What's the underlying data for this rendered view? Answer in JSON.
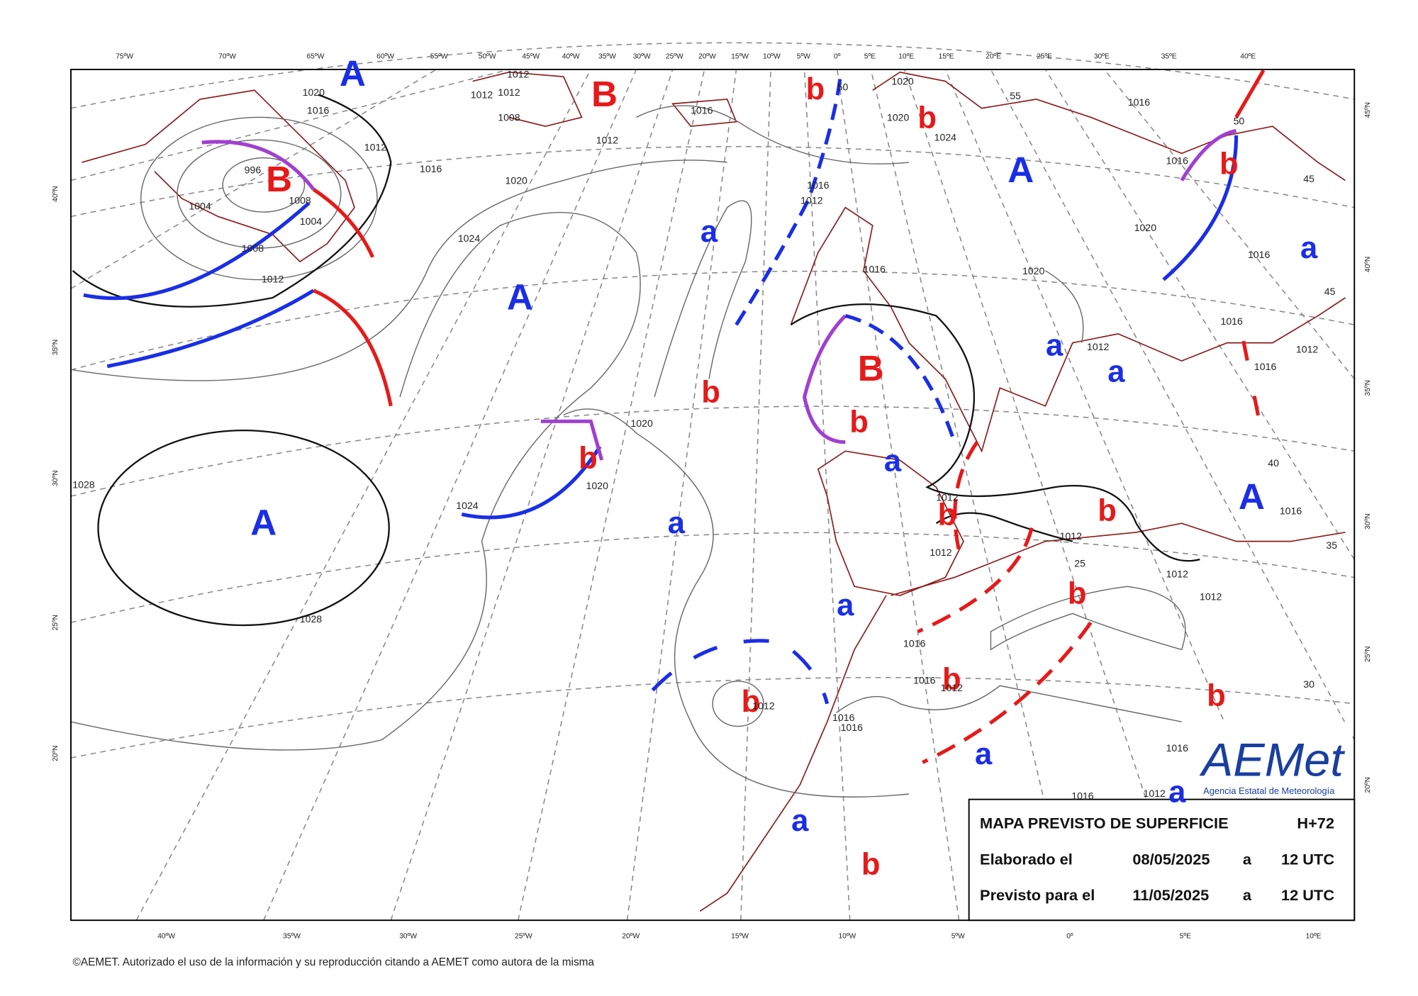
{
  "top_lon_labels": [
    "75ºW",
    "70ºW",
    "65ºW",
    "60ºW",
    "55ºW",
    "50ºW",
    "45ºW",
    "40ºW",
    "35ºW",
    "30ºW",
    "25ºW",
    "20ºW",
    "15ºW",
    "10ºW",
    "5ºW",
    "0º",
    "5ºE",
    "10ºE",
    "15ºE",
    "20ºE",
    "25ºE",
    "30ºE",
    "35ºE",
    "40ºE"
  ],
  "bottom_lon_labels": [
    "40ºW",
    "35ºW",
    "30ºW",
    "25ºW",
    "20ºW",
    "15ºW",
    "10ºW",
    "5ºW",
    "0º",
    "5ºE",
    "10ºE"
  ],
  "left_lat_labels": [
    "40ºN",
    "35ºN",
    "30ºN",
    "25ºN",
    "20ºN"
  ],
  "right_lat_labels": [
    "45ºN",
    "40ºN",
    "35ºN",
    "30ºN",
    "25ºN",
    "20ºN"
  ],
  "pressure_centers": [
    "A",
    "B",
    "b",
    "b",
    "B",
    "A",
    "b",
    "a",
    "a",
    "A",
    "a",
    "a",
    "b",
    "B",
    "b",
    "b",
    "a",
    "A",
    "b",
    "b",
    "A",
    "a",
    "b",
    "a",
    "b",
    "b",
    "b",
    "a",
    "a",
    "a",
    "b"
  ],
  "isobar_labels": [
    "1020",
    "1016",
    "1012",
    "996",
    "1008",
    "1004",
    "1004",
    "1008",
    "1012",
    "1016",
    "1020",
    "1024",
    "1012",
    "1012",
    "1012",
    "1008",
    "1012",
    "1016",
    "1020",
    "1020",
    "1024",
    "1016",
    "1012",
    "1016",
    "1020",
    "1020",
    "1016",
    "1016",
    "1016",
    "1012",
    "1012",
    "1016",
    "1020",
    "1020",
    "1024",
    "1028",
    "1028",
    "1012",
    "1012",
    "1012",
    "1012",
    "1012",
    "1016",
    "1016",
    "1012",
    "1012",
    "1016",
    "1016",
    "1016",
    "1016",
    "1012",
    "1016",
    "1016",
    "55",
    "50",
    "50",
    "45",
    "45",
    "40",
    "35",
    "30",
    "25"
  ],
  "info_box": {
    "title": "MAPA PREVISTO DE SUPERFICIE",
    "forecast_hour": "H+72",
    "rows": [
      {
        "label": "Elaborado el",
        "date": "08/05/2025",
        "sep": "a",
        "time": "12 UTC"
      },
      {
        "label": "Previsto para el",
        "date": "11/05/2025",
        "sep": "a",
        "time": "12 UTC"
      }
    ]
  },
  "logo": {
    "brand": "AEMet",
    "subtitle": "Agencia Estatal de Meteorología"
  },
  "footer": "©AEMET. Autorizado el uso de la información y su reproducción citando a AEMET como autora de la misma"
}
